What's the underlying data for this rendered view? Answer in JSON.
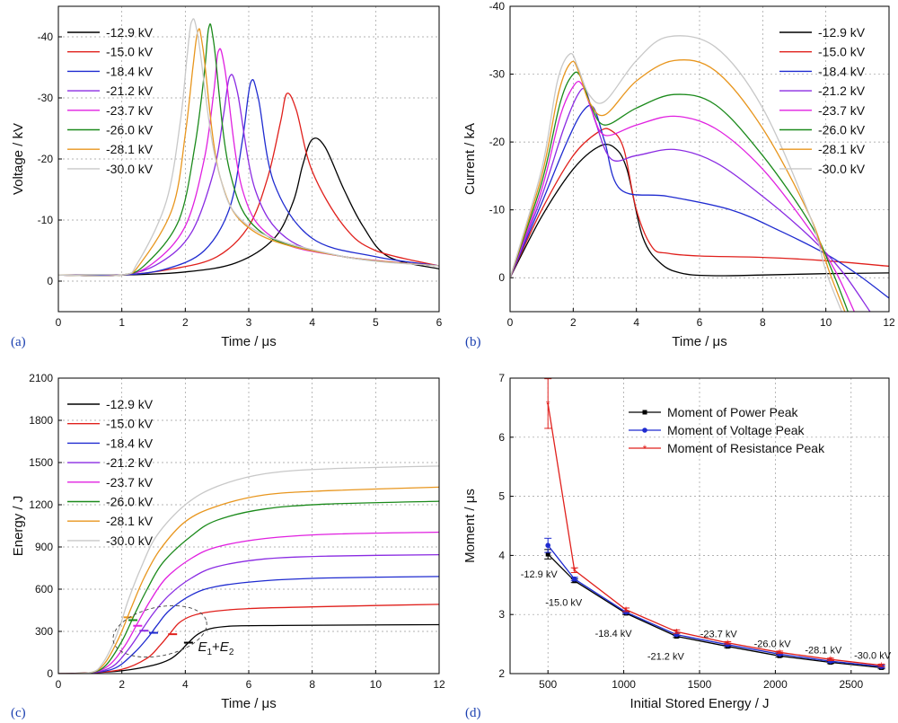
{
  "labels": {
    "voltages": [
      "-12.9 kV",
      "-15.0 kV",
      "-18.4 kV",
      "-21.2 kV",
      "-23.7 kV",
      "-26.0 kV",
      "-28.1 kV",
      "-30.0 kV"
    ],
    "colors": [
      "#000000",
      "#e0201c",
      "#1f2bd0",
      "#8a2be2",
      "#e020e0",
      "#1b8a1b",
      "#e8961e",
      "#c8c8c8"
    ]
  },
  "chart_data": [
    {
      "panel": "(a)",
      "type": "line",
      "xlabel": "Time / μs",
      "ylabel": "Voltage / kV",
      "xlim": [
        0,
        6
      ],
      "ylim": [
        5,
        -45
      ],
      "xticks": [
        0,
        1,
        2,
        3,
        4,
        5,
        6
      ],
      "yticks": [
        0,
        -10,
        -20,
        -30,
        -40
      ],
      "ytick_labels": [
        "0",
        "-10",
        "-20",
        "-30",
        "-40"
      ],
      "legend": "top-left",
      "series": [
        {
          "name": "-12.9 kV",
          "x": [
            0,
            1,
            2,
            2.8,
            3.4,
            3.7,
            3.85,
            4.0,
            4.2,
            4.5,
            4.8,
            5.2,
            6.0
          ],
          "y": [
            -1,
            -1,
            -1.5,
            -3,
            -7,
            -13,
            -19,
            -23.2,
            -22,
            -15,
            -9,
            -4,
            -2
          ]
        },
        {
          "name": "-15.0 kV",
          "x": [
            0,
            1,
            1.8,
            2.5,
            3.0,
            3.3,
            3.5,
            3.6,
            3.75,
            4.0,
            4.5,
            5.0,
            6.0
          ],
          "y": [
            -1,
            -1,
            -2,
            -4,
            -9,
            -17,
            -26,
            -30.7,
            -28,
            -18,
            -9,
            -5,
            -2.5
          ]
        },
        {
          "name": "-18.4 kV",
          "x": [
            0,
            1,
            1.7,
            2.3,
            2.7,
            2.9,
            3.03,
            3.15,
            3.4,
            4.0,
            5.0,
            6.0
          ],
          "y": [
            -1,
            -1,
            -2,
            -5,
            -12,
            -23,
            -32.5,
            -30,
            -16,
            -7,
            -4,
            -2.5
          ]
        },
        {
          "name": "-21.2 kV",
          "x": [
            0,
            1,
            1.6,
            2.1,
            2.45,
            2.6,
            2.7,
            2.82,
            3.1,
            3.6,
            4.5,
            6.0
          ],
          "y": [
            -1,
            -1,
            -3,
            -8,
            -18,
            -27,
            -33.5,
            -31,
            -15,
            -7,
            -4,
            -2.5
          ]
        },
        {
          "name": "-23.7 kV",
          "x": [
            0,
            1,
            1.5,
            2.0,
            2.3,
            2.45,
            2.52,
            2.62,
            2.9,
            3.4,
            4.5,
            6.0
          ],
          "y": [
            -1,
            -1,
            -3,
            -9,
            -20,
            -31,
            -37.6,
            -35,
            -15,
            -7,
            -4,
            -2.5
          ]
        },
        {
          "name": "-26.0 kV",
          "x": [
            0,
            1,
            1.4,
            1.9,
            2.15,
            2.3,
            2.37,
            2.45,
            2.7,
            3.2,
            4.5,
            6.0
          ],
          "y": [
            -1,
            -1,
            -3,
            -10,
            -22,
            -34,
            -41.5,
            -39,
            -18,
            -8,
            -4,
            -2.5
          ]
        },
        {
          "name": "-28.1 kV",
          "x": [
            0,
            1,
            1.3,
            1.8,
            2.0,
            2.12,
            2.2,
            2.28,
            2.55,
            3.1,
            4.5,
            6.0
          ],
          "y": [
            -1,
            -1,
            -3,
            -12,
            -24,
            -35,
            -41,
            -38,
            -17,
            -8,
            -4,
            -2.5
          ]
        },
        {
          "name": "-30.0 kV",
          "x": [
            0,
            1,
            1.25,
            1.7,
            1.92,
            2.03,
            2.1,
            2.2,
            2.5,
            3.0,
            4.5,
            6.0
          ],
          "y": [
            -1,
            -1,
            -3,
            -13,
            -26,
            -37,
            -42.5,
            -40,
            -19,
            -9,
            -4,
            -2.5
          ]
        }
      ]
    },
    {
      "panel": "(b)",
      "type": "line",
      "xlabel": "Time / μs",
      "ylabel": "Current / kA",
      "xlim": [
        0,
        12
      ],
      "ylim": [
        5,
        -40
      ],
      "xticks": [
        0,
        2,
        4,
        6,
        8,
        10,
        12
      ],
      "yticks": [
        0,
        -10,
        -20,
        -30,
        -40
      ],
      "ytick_labels": [
        "0",
        "-10",
        "-20",
        "-30",
        "-40"
      ],
      "legend": "top-right",
      "series": [
        {
          "name": "-12.9 kV",
          "x": [
            0,
            1,
            2,
            2.8,
            3.3,
            3.7,
            4.2,
            4.8,
            5.5,
            6.5,
            8,
            10,
            12
          ],
          "y": [
            0,
            -9,
            -16,
            -19.3,
            -19.2,
            -16,
            -6,
            -2,
            -0.6,
            -0.3,
            -0.4,
            -0.6,
            -0.7
          ]
        },
        {
          "name": "-15.0 kV",
          "x": [
            0,
            1,
            2,
            2.8,
            3.2,
            3.6,
            4.0,
            4.5,
            5,
            6,
            8,
            10,
            12
          ],
          "y": [
            0,
            -10,
            -18,
            -21.5,
            -21.7,
            -19,
            -10,
            -4.5,
            -3.6,
            -3.2,
            -3,
            -2.5,
            -1.7
          ]
        },
        {
          "name": "-18.4 kV",
          "x": [
            0,
            1,
            1.8,
            2.3,
            2.65,
            3.0,
            3.5,
            5,
            7,
            8.5,
            10,
            11,
            12
          ],
          "y": [
            0,
            -11,
            -20,
            -24.5,
            -25,
            -20,
            -13,
            -12,
            -10,
            -7,
            -3.5,
            -0.5,
            3
          ]
        },
        {
          "name": "-21.2 kV",
          "x": [
            0,
            1,
            1.7,
            2.15,
            2.4,
            2.7,
            3.2,
            4,
            5.2,
            6.5,
            8,
            9.5,
            10.5,
            11.4
          ],
          "y": [
            0,
            -12,
            -22,
            -27,
            -27.5,
            -23,
            -17.5,
            -18,
            -18.9,
            -17,
            -12,
            -6,
            -1,
            5
          ]
        },
        {
          "name": "-23.7 kV",
          "x": [
            0,
            1,
            1.6,
            2.05,
            2.3,
            2.6,
            3.0,
            4,
            5.2,
            6.5,
            8,
            9.5,
            10.3,
            10.9
          ],
          "y": [
            0,
            -13,
            -24,
            -28.5,
            -28.3,
            -24.5,
            -21,
            -22.5,
            -23.8,
            -22,
            -16,
            -7,
            -1,
            5
          ]
        },
        {
          "name": "-26.0 kV",
          "x": [
            0,
            1,
            1.6,
            2.0,
            2.25,
            2.55,
            3.0,
            4,
            5.2,
            6.5,
            8,
            9.5,
            10.2,
            10.7
          ],
          "y": [
            0,
            -14,
            -26,
            -30,
            -29.5,
            -25.5,
            -22.5,
            -25,
            -27,
            -25.5,
            -18,
            -8,
            -1,
            5
          ]
        },
        {
          "name": "-28.1 kV",
          "x": [
            0,
            1,
            1.55,
            1.95,
            2.2,
            2.5,
            3.0,
            4,
            5.2,
            6.5,
            8,
            9.5,
            10.1,
            10.6
          ],
          "y": [
            0,
            -15,
            -27.5,
            -31.8,
            -30,
            -26,
            -24,
            -29,
            -32,
            -30.5,
            -22,
            -9,
            -1,
            5
          ]
        },
        {
          "name": "-30.0 kV",
          "x": [
            0,
            1,
            1.5,
            1.9,
            2.15,
            2.5,
            3.0,
            4,
            5.0,
            6.5,
            8,
            9.5,
            10.0,
            10.5
          ],
          "y": [
            0,
            -16,
            -29,
            -33,
            -31,
            -27,
            -26,
            -32,
            -35.5,
            -34,
            -25,
            -9,
            -1,
            5
          ]
        }
      ]
    },
    {
      "panel": "(c)",
      "type": "line",
      "xlabel": "Time / μs",
      "ylabel": "Energy / J",
      "xlim": [
        0,
        12
      ],
      "ylim": [
        0,
        2100
      ],
      "xticks": [
        0,
        2,
        4,
        6,
        8,
        10,
        12
      ],
      "yticks": [
        0,
        300,
        600,
        900,
        1200,
        1500,
        1800,
        2100
      ],
      "ytick_labels": [
        "0",
        "300",
        "600",
        "900",
        "1200",
        "1500",
        "1800",
        "2100"
      ],
      "legend": "top-left",
      "annotation": {
        "label_e1": "E",
        "label_sub1": "1",
        "label_plus": "+",
        "label_e2": "E",
        "label_sub2": "2"
      },
      "markers": [
        {
          "x": 4.1,
          "y": 220,
          "series": 0
        },
        {
          "x": 3.6,
          "y": 280,
          "series": 1
        },
        {
          "x": 3.0,
          "y": 290,
          "series": 2
        },
        {
          "x": 2.7,
          "y": 305,
          "series": 3
        },
        {
          "x": 2.5,
          "y": 340,
          "series": 4
        },
        {
          "x": 2.35,
          "y": 380,
          "series": 5
        },
        {
          "x": 2.2,
          "y": 400,
          "series": 6
        }
      ],
      "series": [
        {
          "name": "-12.9 kV",
          "x": [
            0,
            1,
            2,
            3,
            3.5,
            3.8,
            4.1,
            4.4,
            4.8,
            5.5,
            7,
            9,
            12
          ],
          "y": [
            0,
            5,
            20,
            60,
            100,
            150,
            220,
            280,
            320,
            338,
            342,
            345,
            348
          ]
        },
        {
          "name": "-15.0 kV",
          "x": [
            0,
            1,
            2,
            2.8,
            3.2,
            3.5,
            3.8,
            4.2,
            4.8,
            6,
            8,
            10,
            12
          ],
          "y": [
            0,
            5,
            30,
            110,
            200,
            280,
            360,
            410,
            440,
            462,
            474,
            484,
            492
          ]
        },
        {
          "name": "-18.4 kV",
          "x": [
            0,
            1,
            1.8,
            2.4,
            2.8,
            3.1,
            3.5,
            4.2,
            5,
            6.5,
            8.5,
            12
          ],
          "y": [
            0,
            5,
            40,
            150,
            250,
            340,
            450,
            560,
            620,
            660,
            680,
            690
          ]
        },
        {
          "name": "-21.2 kV",
          "x": [
            0,
            1,
            1.7,
            2.2,
            2.6,
            3.0,
            3.5,
            4.2,
            5,
            6.5,
            8.5,
            12
          ],
          "y": [
            0,
            5,
            50,
            170,
            300,
            430,
            560,
            680,
            760,
            815,
            835,
            845
          ]
        },
        {
          "name": "-23.7 kV",
          "x": [
            0,
            1,
            1.6,
            2.1,
            2.5,
            2.9,
            3.4,
            4.2,
            5,
            6.5,
            8.5,
            12
          ],
          "y": [
            0,
            6,
            60,
            200,
            360,
            520,
            680,
            820,
            900,
            960,
            990,
            1005
          ]
        },
        {
          "name": "-26.0 kV",
          "x": [
            0,
            1,
            1.5,
            2.0,
            2.4,
            2.8,
            3.3,
            4.2,
            5,
            6.5,
            8.5,
            12
          ],
          "y": [
            0,
            6,
            60,
            230,
            420,
            600,
            790,
            980,
            1090,
            1170,
            1205,
            1225
          ]
        },
        {
          "name": "-28.1 kV",
          "x": [
            0,
            1,
            1.45,
            1.9,
            2.3,
            2.7,
            3.2,
            4.0,
            5,
            6.5,
            8.5,
            12
          ],
          "y": [
            0,
            7,
            70,
            250,
            470,
            680,
            880,
            1080,
            1190,
            1270,
            1300,
            1325
          ]
        },
        {
          "name": "-30.0 kV",
          "x": [
            0,
            1,
            1.4,
            1.85,
            2.2,
            2.6,
            3.1,
            4.0,
            5,
            6.5,
            8.5,
            12
          ],
          "y": [
            0,
            7,
            75,
            280,
            520,
            750,
            980,
            1200,
            1330,
            1420,
            1455,
            1475
          ]
        }
      ]
    },
    {
      "panel": "(d)",
      "type": "line",
      "xlabel": "Initial Stored Energy / J",
      "ylabel": "Moment / μs",
      "xlim": [
        250,
        2750
      ],
      "ylim": [
        2,
        7
      ],
      "xticks": [
        500,
        1000,
        1500,
        2000,
        2500
      ],
      "yticks": [
        2,
        3,
        4,
        5,
        6,
        7
      ],
      "ytick_labels": [
        "2",
        "3",
        "4",
        "5",
        "6",
        "7"
      ],
      "legend": "top-right",
      "x": [
        500,
        675,
        1015,
        1348,
        1685,
        2028,
        2364,
        2700
      ],
      "point_labels": [
        "-12.9 kV",
        "-15.0 kV",
        "-18.4 kV",
        "-21.2 kV",
        "-23.7 kV",
        "-26.0 kV",
        "-28.1 kV",
        "-30.0 kV"
      ],
      "series": [
        {
          "name": "Moment of Power Peak",
          "color": "#000000",
          "marker": "square",
          "y": [
            4.02,
            3.57,
            3.02,
            2.63,
            2.46,
            2.3,
            2.19,
            2.1
          ],
          "err": [
            0.08,
            0.03,
            0.02,
            0.02,
            0.02,
            0.02,
            0.02,
            0.02
          ]
        },
        {
          "name": "Moment of Voltage Peak",
          "color": "#1f2bd0",
          "marker": "circle",
          "y": [
            4.17,
            3.6,
            3.04,
            2.66,
            2.49,
            2.33,
            2.21,
            2.12
          ],
          "err": [
            0.12,
            0.03,
            0.02,
            0.02,
            0.02,
            0.02,
            0.02,
            0.02
          ]
        },
        {
          "name": "Moment of Resistance Peak",
          "color": "#e0201c",
          "marker": "star",
          "y": [
            6.57,
            3.75,
            3.08,
            2.71,
            2.52,
            2.36,
            2.24,
            2.14
          ],
          "err": [
            0.42,
            0.04,
            0.03,
            0.03,
            0.02,
            0.02,
            0.02,
            0.02
          ]
        }
      ]
    }
  ]
}
